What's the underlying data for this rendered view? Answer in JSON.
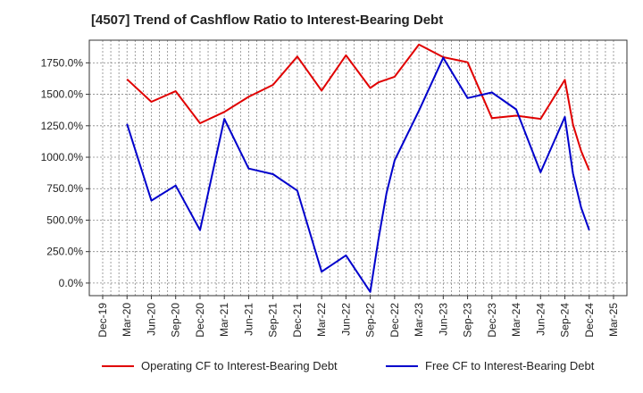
{
  "title": "[4507]  Trend of Cashflow Ratio to Interest-Bearing Debt",
  "chart_data": {
    "type": "line",
    "title": "[4507]  Trend of Cashflow Ratio to Interest-Bearing Debt",
    "xlabel": "",
    "ylabel": "",
    "x_ticks": [
      "Dec-19",
      "Mar-20",
      "Jun-20",
      "Sep-20",
      "Dec-20",
      "Mar-21",
      "Jun-21",
      "Sep-21",
      "Dec-21",
      "Mar-22",
      "Jun-22",
      "Sep-22",
      "Dec-22",
      "Mar-23",
      "Jun-23",
      "Sep-23",
      "Dec-23",
      "Mar-24",
      "Jun-24",
      "Sep-24",
      "Dec-24",
      "Mar-25"
    ],
    "y_ticks": [
      0,
      250,
      500,
      750,
      1000,
      1250,
      1500,
      1750
    ],
    "y_tick_labels": [
      "0.0%",
      "250.0%",
      "500.0%",
      "750.0%",
      "1000.0%",
      "1250.0%",
      "1500.0%",
      "1750.0%"
    ],
    "x_range": [
      "2019-12",
      "2025-03"
    ],
    "ylim": [
      -100,
      1930
    ],
    "grid": true,
    "legend_position": "bottom",
    "series": [
      {
        "name": "Operating CF to Interest-Bearing Debt",
        "color": "#e00000",
        "points": [
          [
            "2020-03",
            1620
          ],
          [
            "2020-06",
            1440
          ],
          [
            "2020-09",
            1525
          ],
          [
            "2020-12",
            1270
          ],
          [
            "2021-03",
            1360
          ],
          [
            "2021-06",
            1480
          ],
          [
            "2021-09",
            1575
          ],
          [
            "2021-12",
            1800
          ],
          [
            "2022-03",
            1530
          ],
          [
            "2022-06",
            1810
          ],
          [
            "2022-09",
            1550
          ],
          [
            "2022-10",
            1595
          ],
          [
            "2022-12",
            1640
          ],
          [
            "2023-03",
            1895
          ],
          [
            "2023-06",
            1795
          ],
          [
            "2023-09",
            1755
          ],
          [
            "2023-12",
            1310
          ],
          [
            "2024-03",
            1330
          ],
          [
            "2024-06",
            1305
          ],
          [
            "2024-09",
            1615
          ],
          [
            "2024-10",
            1260
          ],
          [
            "2024-11",
            1050
          ],
          [
            "2024-12",
            895
          ]
        ]
      },
      {
        "name": "Free CF to Interest-Bearing Debt",
        "color": "#0000cc",
        "points": [
          [
            "2020-03",
            1265
          ],
          [
            "2020-06",
            655
          ],
          [
            "2020-09",
            775
          ],
          [
            "2020-12",
            420
          ],
          [
            "2021-03",
            1305
          ],
          [
            "2021-06",
            910
          ],
          [
            "2021-09",
            865
          ],
          [
            "2021-12",
            735
          ],
          [
            "2022-03",
            90
          ],
          [
            "2022-06",
            220
          ],
          [
            "2022-09",
            -70
          ],
          [
            "2022-10",
            345
          ],
          [
            "2022-11",
            715
          ],
          [
            "2022-12",
            975
          ],
          [
            "2023-03",
            1370
          ],
          [
            "2023-06",
            1790
          ],
          [
            "2023-09",
            1470
          ],
          [
            "2023-12",
            1515
          ],
          [
            "2024-03",
            1380
          ],
          [
            "2024-06",
            880
          ],
          [
            "2024-09",
            1320
          ],
          [
            "2024-10",
            870
          ],
          [
            "2024-11",
            600
          ],
          [
            "2024-12",
            420
          ]
        ]
      }
    ]
  }
}
